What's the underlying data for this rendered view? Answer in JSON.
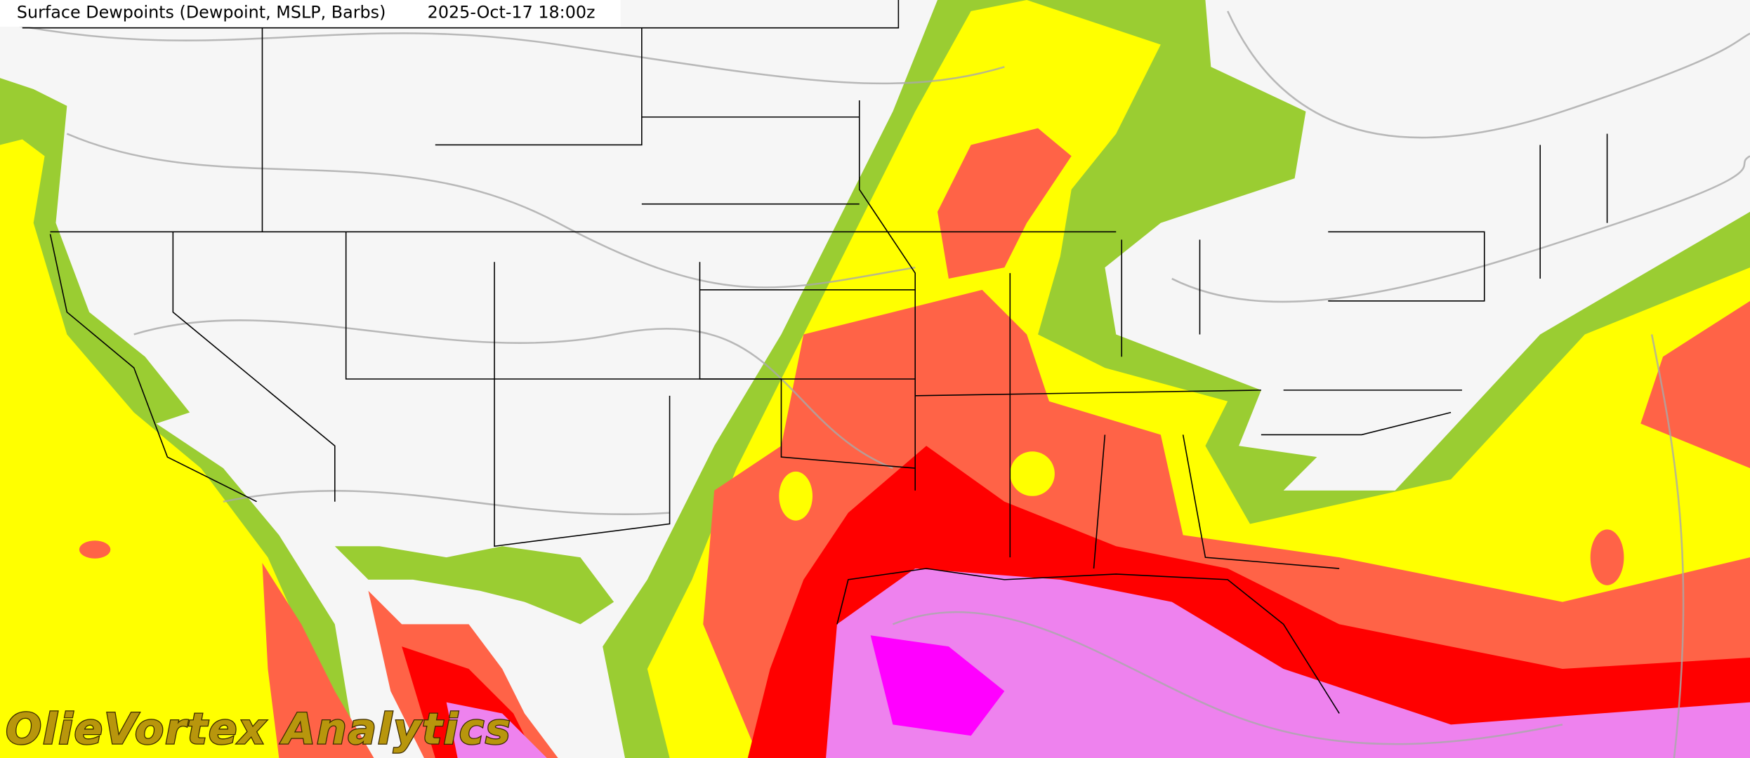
{
  "header": {
    "title": "Surface Dewpoints (Dewpoint, MSLP, Barbs)",
    "valid_time": "2025-Oct-17 18:00z"
  },
  "watermark": "OlieVortex Analytics"
}
